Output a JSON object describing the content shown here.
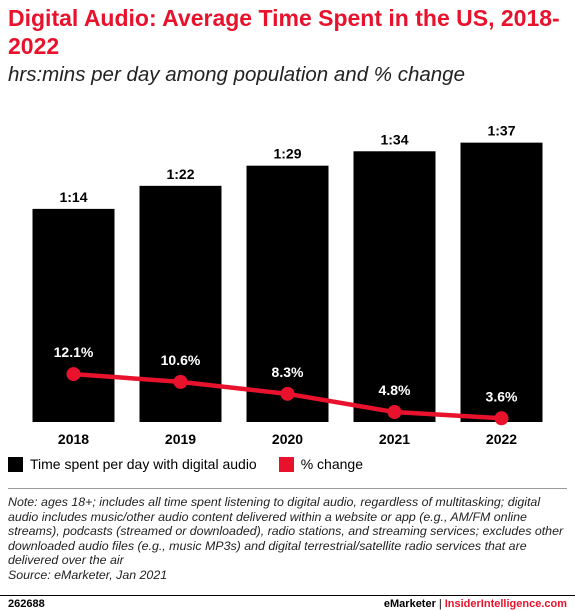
{
  "chart_data": {
    "type": "bar",
    "title": "Digital Audio: Average Time Spent in the US, 2018-2022",
    "subtitle": "hrs:mins per day among population and % change",
    "categories": [
      "2018",
      "2019",
      "2020",
      "2021",
      "2022"
    ],
    "series": [
      {
        "name": "Time spent per day with digital audio",
        "type": "bar",
        "values_minutes": [
          74,
          82,
          89,
          94,
          97
        ],
        "labels": [
          "1:14",
          "1:22",
          "1:29",
          "1:34",
          "1:37"
        ],
        "color": "#000000"
      },
      {
        "name": "% change",
        "type": "line",
        "values": [
          12.1,
          10.6,
          8.3,
          4.8,
          3.6
        ],
        "labels": [
          "12.1%",
          "10.6%",
          "8.3%",
          "4.8%",
          "3.6%"
        ],
        "color": "#e8122c"
      }
    ],
    "grid": false,
    "legend": "bottom-left"
  },
  "note": "Note: ages 18+; includes all time spent listening to digital audio, regardless of multitasking; digital audio includes music/other audio content delivered within a website or app (e.g., AM/FM online streams), podcasts (streamed or downloaded), radio stations, and streaming services; excludes other downloaded audio files (e.g., music MP3s) and digital terrestrial/satellite radio services that are delivered over the air",
  "source": "Source: eMarketer, Jan 2021",
  "footer": {
    "id": "262688",
    "brand": "eMarketer",
    "separator": "|",
    "site": "InsiderIntelligence.com"
  }
}
